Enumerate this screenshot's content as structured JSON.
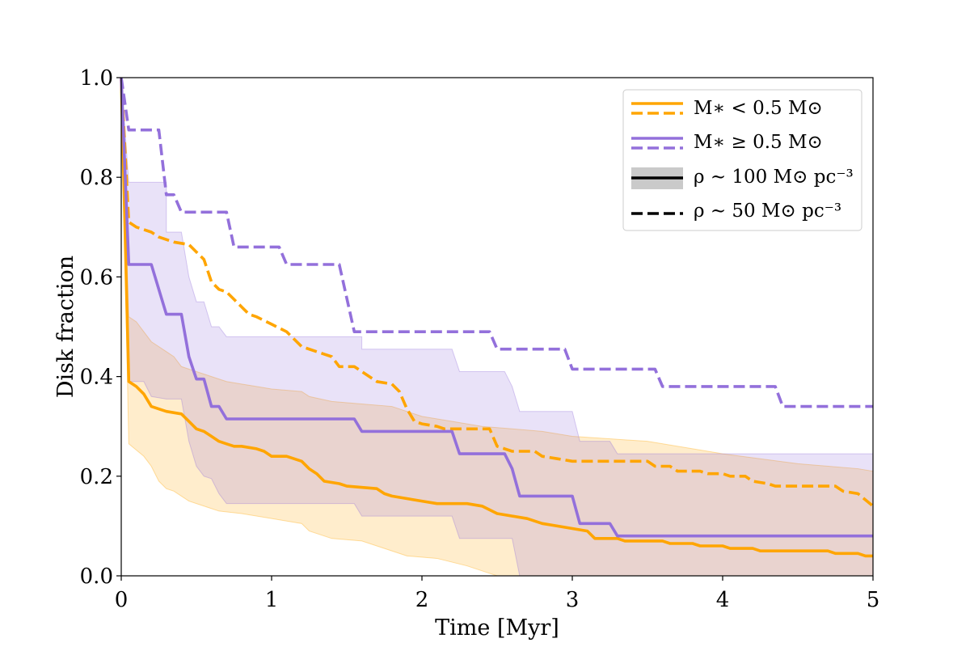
{
  "chart_data": {
    "type": "line",
    "title": "",
    "xlabel": "Time [Myr]",
    "ylabel": "Disk fraction",
    "xlim": [
      0,
      5
    ],
    "ylim": [
      0,
      1
    ],
    "xticks": [
      "0",
      "1",
      "2",
      "3",
      "4",
      "5"
    ],
    "yticks": [
      "0.0",
      "0.2",
      "0.4",
      "0.6",
      "0.8",
      "1.0"
    ],
    "grid": false,
    "legend_position": "top-right",
    "legend": [
      {
        "label": "M∗ <  0.5 M⊙",
        "color": "#ffa500",
        "styles": [
          "solid",
          "dashed"
        ]
      },
      {
        "label": "M∗ ≥  0.5 M⊙",
        "color": "#9370db",
        "styles": [
          "solid",
          "dashed"
        ]
      },
      {
        "label": "ρ ∼ 100 M⊙ pc⁻³",
        "color": "#000000",
        "styles": [
          "solid",
          "band"
        ]
      },
      {
        "label": "ρ ∼ 50 M⊙ pc⁻³",
        "color": "#000000",
        "styles": [
          "dashed"
        ]
      }
    ],
    "bands": [
      {
        "name": "M* < 0.5 Msun, rho~100 (uncertainty)",
        "color": "#ffa500",
        "opacity": 0.2,
        "upper": [
          [
            0,
            1.0
          ],
          [
            0.05,
            0.52
          ],
          [
            0.1,
            0.51
          ],
          [
            0.15,
            0.49
          ],
          [
            0.2,
            0.47
          ],
          [
            0.25,
            0.46
          ],
          [
            0.3,
            0.45
          ],
          [
            0.35,
            0.44
          ],
          [
            0.4,
            0.42
          ],
          [
            0.5,
            0.41
          ],
          [
            0.6,
            0.4
          ],
          [
            0.7,
            0.39
          ],
          [
            0.8,
            0.385
          ],
          [
            0.9,
            0.38
          ],
          [
            1.0,
            0.375
          ],
          [
            1.2,
            0.37
          ],
          [
            1.25,
            0.36
          ],
          [
            1.4,
            0.35
          ],
          [
            1.6,
            0.345
          ],
          [
            1.8,
            0.34
          ],
          [
            2.0,
            0.32
          ],
          [
            2.2,
            0.31
          ],
          [
            2.4,
            0.3
          ],
          [
            2.6,
            0.295
          ],
          [
            2.8,
            0.29
          ],
          [
            3.0,
            0.28
          ],
          [
            3.5,
            0.27
          ],
          [
            4.0,
            0.245
          ],
          [
            4.5,
            0.225
          ],
          [
            4.9,
            0.215
          ],
          [
            5.0,
            0.21
          ]
        ],
        "lower": [
          [
            0,
            1.0
          ],
          [
            0.05,
            0.265
          ],
          [
            0.15,
            0.24
          ],
          [
            0.2,
            0.22
          ],
          [
            0.25,
            0.19
          ],
          [
            0.3,
            0.175
          ],
          [
            0.35,
            0.17
          ],
          [
            0.45,
            0.15
          ],
          [
            0.55,
            0.14
          ],
          [
            0.65,
            0.13
          ],
          [
            0.8,
            0.125
          ],
          [
            1.0,
            0.115
          ],
          [
            1.2,
            0.105
          ],
          [
            1.25,
            0.09
          ],
          [
            1.4,
            0.075
          ],
          [
            1.6,
            0.07
          ],
          [
            1.75,
            0.055
          ],
          [
            1.9,
            0.04
          ],
          [
            2.1,
            0.035
          ],
          [
            2.3,
            0.02
          ],
          [
            2.45,
            0.005
          ],
          [
            2.5,
            0.0
          ],
          [
            5.0,
            0.0
          ]
        ]
      },
      {
        "name": "M* >= 0.5 Msun, rho~100 (uncertainty)",
        "color": "#9370db",
        "opacity": 0.2,
        "upper": [
          [
            0,
            1.0
          ],
          [
            0.05,
            0.79
          ],
          [
            0.3,
            0.79
          ],
          [
            0.3,
            0.69
          ],
          [
            0.4,
            0.69
          ],
          [
            0.45,
            0.6
          ],
          [
            0.5,
            0.55
          ],
          [
            0.55,
            0.55
          ],
          [
            0.6,
            0.5
          ],
          [
            0.65,
            0.5
          ],
          [
            0.7,
            0.48
          ],
          [
            1.6,
            0.48
          ],
          [
            1.6,
            0.455
          ],
          [
            2.2,
            0.455
          ],
          [
            2.25,
            0.41
          ],
          [
            2.55,
            0.41
          ],
          [
            2.6,
            0.38
          ],
          [
            2.65,
            0.33
          ],
          [
            3.0,
            0.33
          ],
          [
            3.05,
            0.27
          ],
          [
            3.25,
            0.27
          ],
          [
            3.3,
            0.245
          ],
          [
            5.0,
            0.245
          ]
        ],
        "lower": [
          [
            0,
            1.0
          ],
          [
            0.05,
            0.39
          ],
          [
            0.15,
            0.39
          ],
          [
            0.2,
            0.36
          ],
          [
            0.3,
            0.355
          ],
          [
            0.4,
            0.355
          ],
          [
            0.45,
            0.27
          ],
          [
            0.5,
            0.22
          ],
          [
            0.55,
            0.2
          ],
          [
            0.6,
            0.195
          ],
          [
            0.65,
            0.165
          ],
          [
            0.7,
            0.145
          ],
          [
            1.55,
            0.145
          ],
          [
            1.6,
            0.12
          ],
          [
            2.2,
            0.12
          ],
          [
            2.25,
            0.075
          ],
          [
            2.6,
            0.075
          ],
          [
            2.65,
            0.0
          ],
          [
            5.0,
            0.0
          ]
        ]
      }
    ],
    "series": [
      {
        "name": "M* < 0.5 Msun, rho~100 Msun pc^-3",
        "color": "#ffa500",
        "dash": "solid",
        "points": [
          [
            0,
            1.0
          ],
          [
            0.05,
            0.39
          ],
          [
            0.1,
            0.38
          ],
          [
            0.15,
            0.365
          ],
          [
            0.2,
            0.34
          ],
          [
            0.3,
            0.33
          ],
          [
            0.4,
            0.325
          ],
          [
            0.45,
            0.31
          ],
          [
            0.5,
            0.295
          ],
          [
            0.55,
            0.29
          ],
          [
            0.6,
            0.28
          ],
          [
            0.65,
            0.27
          ],
          [
            0.7,
            0.265
          ],
          [
            0.75,
            0.26
          ],
          [
            0.8,
            0.26
          ],
          [
            0.9,
            0.255
          ],
          [
            0.95,
            0.25
          ],
          [
            1.0,
            0.24
          ],
          [
            1.1,
            0.24
          ],
          [
            1.2,
            0.23
          ],
          [
            1.25,
            0.215
          ],
          [
            1.3,
            0.205
          ],
          [
            1.35,
            0.19
          ],
          [
            1.45,
            0.185
          ],
          [
            1.5,
            0.18
          ],
          [
            1.7,
            0.175
          ],
          [
            1.75,
            0.165
          ],
          [
            1.8,
            0.16
          ],
          [
            1.9,
            0.155
          ],
          [
            2.0,
            0.15
          ],
          [
            2.1,
            0.145
          ],
          [
            2.3,
            0.145
          ],
          [
            2.4,
            0.14
          ],
          [
            2.5,
            0.125
          ],
          [
            2.6,
            0.12
          ],
          [
            2.7,
            0.115
          ],
          [
            2.8,
            0.105
          ],
          [
            2.9,
            0.1
          ],
          [
            3.0,
            0.095
          ],
          [
            3.1,
            0.09
          ],
          [
            3.15,
            0.075
          ],
          [
            3.3,
            0.075
          ],
          [
            3.35,
            0.07
          ],
          [
            3.6,
            0.07
          ],
          [
            3.65,
            0.065
          ],
          [
            3.8,
            0.065
          ],
          [
            3.85,
            0.06
          ],
          [
            4.0,
            0.06
          ],
          [
            4.05,
            0.055
          ],
          [
            4.2,
            0.055
          ],
          [
            4.25,
            0.05
          ],
          [
            4.7,
            0.05
          ],
          [
            4.75,
            0.045
          ],
          [
            4.9,
            0.045
          ],
          [
            4.95,
            0.04
          ],
          [
            5.0,
            0.04
          ]
        ]
      },
      {
        "name": "M* < 0.5 Msun, rho~50 Msun pc^-3",
        "color": "#ffa500",
        "dash": "dashed",
        "points": [
          [
            0,
            1.0
          ],
          [
            0.05,
            0.71
          ],
          [
            0.1,
            0.7
          ],
          [
            0.15,
            0.695
          ],
          [
            0.2,
            0.69
          ],
          [
            0.25,
            0.68
          ],
          [
            0.3,
            0.675
          ],
          [
            0.35,
            0.67
          ],
          [
            0.45,
            0.665
          ],
          [
            0.5,
            0.65
          ],
          [
            0.55,
            0.635
          ],
          [
            0.6,
            0.59
          ],
          [
            0.65,
            0.575
          ],
          [
            0.7,
            0.57
          ],
          [
            0.75,
            0.555
          ],
          [
            0.8,
            0.54
          ],
          [
            0.85,
            0.525
          ],
          [
            0.9,
            0.52
          ],
          [
            1.0,
            0.505
          ],
          [
            1.1,
            0.49
          ],
          [
            1.15,
            0.475
          ],
          [
            1.2,
            0.46
          ],
          [
            1.3,
            0.45
          ],
          [
            1.35,
            0.445
          ],
          [
            1.4,
            0.44
          ],
          [
            1.45,
            0.42
          ],
          [
            1.55,
            0.42
          ],
          [
            1.6,
            0.41
          ],
          [
            1.65,
            0.4
          ],
          [
            1.7,
            0.39
          ],
          [
            1.8,
            0.385
          ],
          [
            1.85,
            0.37
          ],
          [
            1.9,
            0.335
          ],
          [
            1.95,
            0.31
          ],
          [
            2.0,
            0.305
          ],
          [
            2.1,
            0.3
          ],
          [
            2.15,
            0.295
          ],
          [
            2.45,
            0.295
          ],
          [
            2.5,
            0.26
          ],
          [
            2.55,
            0.255
          ],
          [
            2.6,
            0.25
          ],
          [
            2.75,
            0.25
          ],
          [
            2.8,
            0.24
          ],
          [
            2.9,
            0.235
          ],
          [
            3.0,
            0.23
          ],
          [
            3.5,
            0.23
          ],
          [
            3.55,
            0.22
          ],
          [
            3.65,
            0.22
          ],
          [
            3.7,
            0.21
          ],
          [
            3.85,
            0.21
          ],
          [
            3.9,
            0.205
          ],
          [
            4.0,
            0.205
          ],
          [
            4.05,
            0.2
          ],
          [
            4.15,
            0.2
          ],
          [
            4.2,
            0.19
          ],
          [
            4.3,
            0.185
          ],
          [
            4.35,
            0.18
          ],
          [
            4.75,
            0.18
          ],
          [
            4.8,
            0.17
          ],
          [
            4.9,
            0.165
          ],
          [
            5.0,
            0.14
          ]
        ]
      },
      {
        "name": "M* >= 0.5 Msun, rho~100 Msun pc^-3",
        "color": "#9370db",
        "dash": "solid",
        "points": [
          [
            0,
            1.0
          ],
          [
            0.05,
            0.625
          ],
          [
            0.2,
            0.625
          ],
          [
            0.3,
            0.525
          ],
          [
            0.4,
            0.525
          ],
          [
            0.45,
            0.44
          ],
          [
            0.5,
            0.395
          ],
          [
            0.55,
            0.395
          ],
          [
            0.6,
            0.34
          ],
          [
            0.65,
            0.34
          ],
          [
            0.7,
            0.315
          ],
          [
            1.55,
            0.315
          ],
          [
            1.6,
            0.29
          ],
          [
            2.2,
            0.29
          ],
          [
            2.25,
            0.245
          ],
          [
            2.55,
            0.245
          ],
          [
            2.6,
            0.215
          ],
          [
            2.65,
            0.16
          ],
          [
            3.0,
            0.16
          ],
          [
            3.05,
            0.105
          ],
          [
            3.25,
            0.105
          ],
          [
            3.3,
            0.08
          ],
          [
            5.0,
            0.08
          ]
        ]
      },
      {
        "name": "M* >= 0.5 Msun, rho~50 Msun pc^-3",
        "color": "#9370db",
        "dash": "dashed",
        "points": [
          [
            0,
            1.0
          ],
          [
            0.05,
            0.895
          ],
          [
            0.25,
            0.895
          ],
          [
            0.3,
            0.765
          ],
          [
            0.35,
            0.765
          ],
          [
            0.4,
            0.73
          ],
          [
            0.7,
            0.73
          ],
          [
            0.75,
            0.66
          ],
          [
            1.05,
            0.66
          ],
          [
            1.1,
            0.625
          ],
          [
            1.45,
            0.625
          ],
          [
            1.55,
            0.49
          ],
          [
            2.45,
            0.49
          ],
          [
            2.5,
            0.455
          ],
          [
            2.95,
            0.455
          ],
          [
            3.0,
            0.415
          ],
          [
            3.55,
            0.415
          ],
          [
            3.6,
            0.38
          ],
          [
            4.35,
            0.38
          ],
          [
            4.4,
            0.34
          ],
          [
            5.0,
            0.34
          ]
        ]
      }
    ]
  }
}
